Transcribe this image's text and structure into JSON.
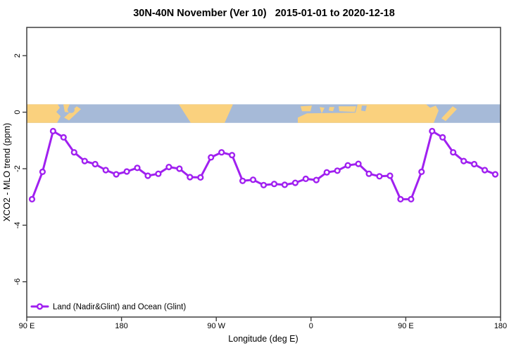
{
  "colors": {
    "series": "#A020F0",
    "marker_fill": "#FFFFFF",
    "land": "#FAD17E",
    "ocean": "#A6BAD8",
    "axis": "#3F3F3F",
    "text": "#000000",
    "background": "#FFFFFF"
  },
  "chart_data": {
    "type": "line",
    "title": "30N-40N November (Ver 10)   2015-01-01 to 2020-12-18",
    "xlabel": "Longitude (deg E)",
    "ylabel": "XCO2 - MLO trend (ppm)",
    "xlim": [
      90,
      540
    ],
    "ylim": [
      -7.25,
      3.0
    ],
    "grid": false,
    "legend_position": "bottom-left",
    "xticks": [
      {
        "value": 90,
        "label": "90 E"
      },
      {
        "value": 180,
        "label": "180"
      },
      {
        "value": 270,
        "label": "90 W"
      },
      {
        "value": 360,
        "label": "0"
      },
      {
        "value": 450,
        "label": "90 E"
      },
      {
        "value": 540,
        "label": "180"
      }
    ],
    "yticks": [
      {
        "value": 2,
        "label": "2"
      },
      {
        "value": 0,
        "label": "0"
      },
      {
        "value": -2,
        "label": "-2"
      },
      {
        "value": -4,
        "label": "-4"
      },
      {
        "value": -6,
        "label": "-6"
      }
    ],
    "series": [
      {
        "name": "Land (Nadir&Glint) and Ocean (Glint)",
        "marker": "open-circle",
        "x": [
          95,
          105,
          115,
          125,
          135,
          145,
          155,
          165,
          175,
          185,
          195,
          205,
          215,
          225,
          235,
          245,
          255,
          265,
          275,
          285,
          295,
          305,
          315,
          325,
          335,
          345,
          355,
          365,
          375,
          385,
          395,
          405,
          415,
          425,
          435,
          445,
          455,
          465,
          475,
          485,
          495,
          505,
          515,
          525,
          535
        ],
        "y": [
          -3.08,
          -2.11,
          -0.67,
          -0.89,
          -1.42,
          -1.73,
          -1.84,
          -2.05,
          -2.2,
          -2.1,
          -1.97,
          -2.25,
          -2.18,
          -1.94,
          -2.0,
          -2.3,
          -2.31,
          -1.6,
          -1.42,
          -1.52,
          -2.43,
          -2.39,
          -2.58,
          -2.54,
          -2.57,
          -2.5,
          -2.36,
          -2.4,
          -2.13,
          -2.07,
          -1.88,
          -1.83,
          -2.18,
          -2.27,
          -2.25,
          -3.08,
          -3.08,
          -2.11,
          -0.67,
          -0.89,
          -1.42,
          -1.73,
          -1.84,
          -2.05,
          -2.2
        ]
      }
    ],
    "map_band": {
      "note": "world coastline strip for latitude band 30N-40N drawn along y=0",
      "y_top": 0.28,
      "y_bottom": -0.38
    }
  }
}
